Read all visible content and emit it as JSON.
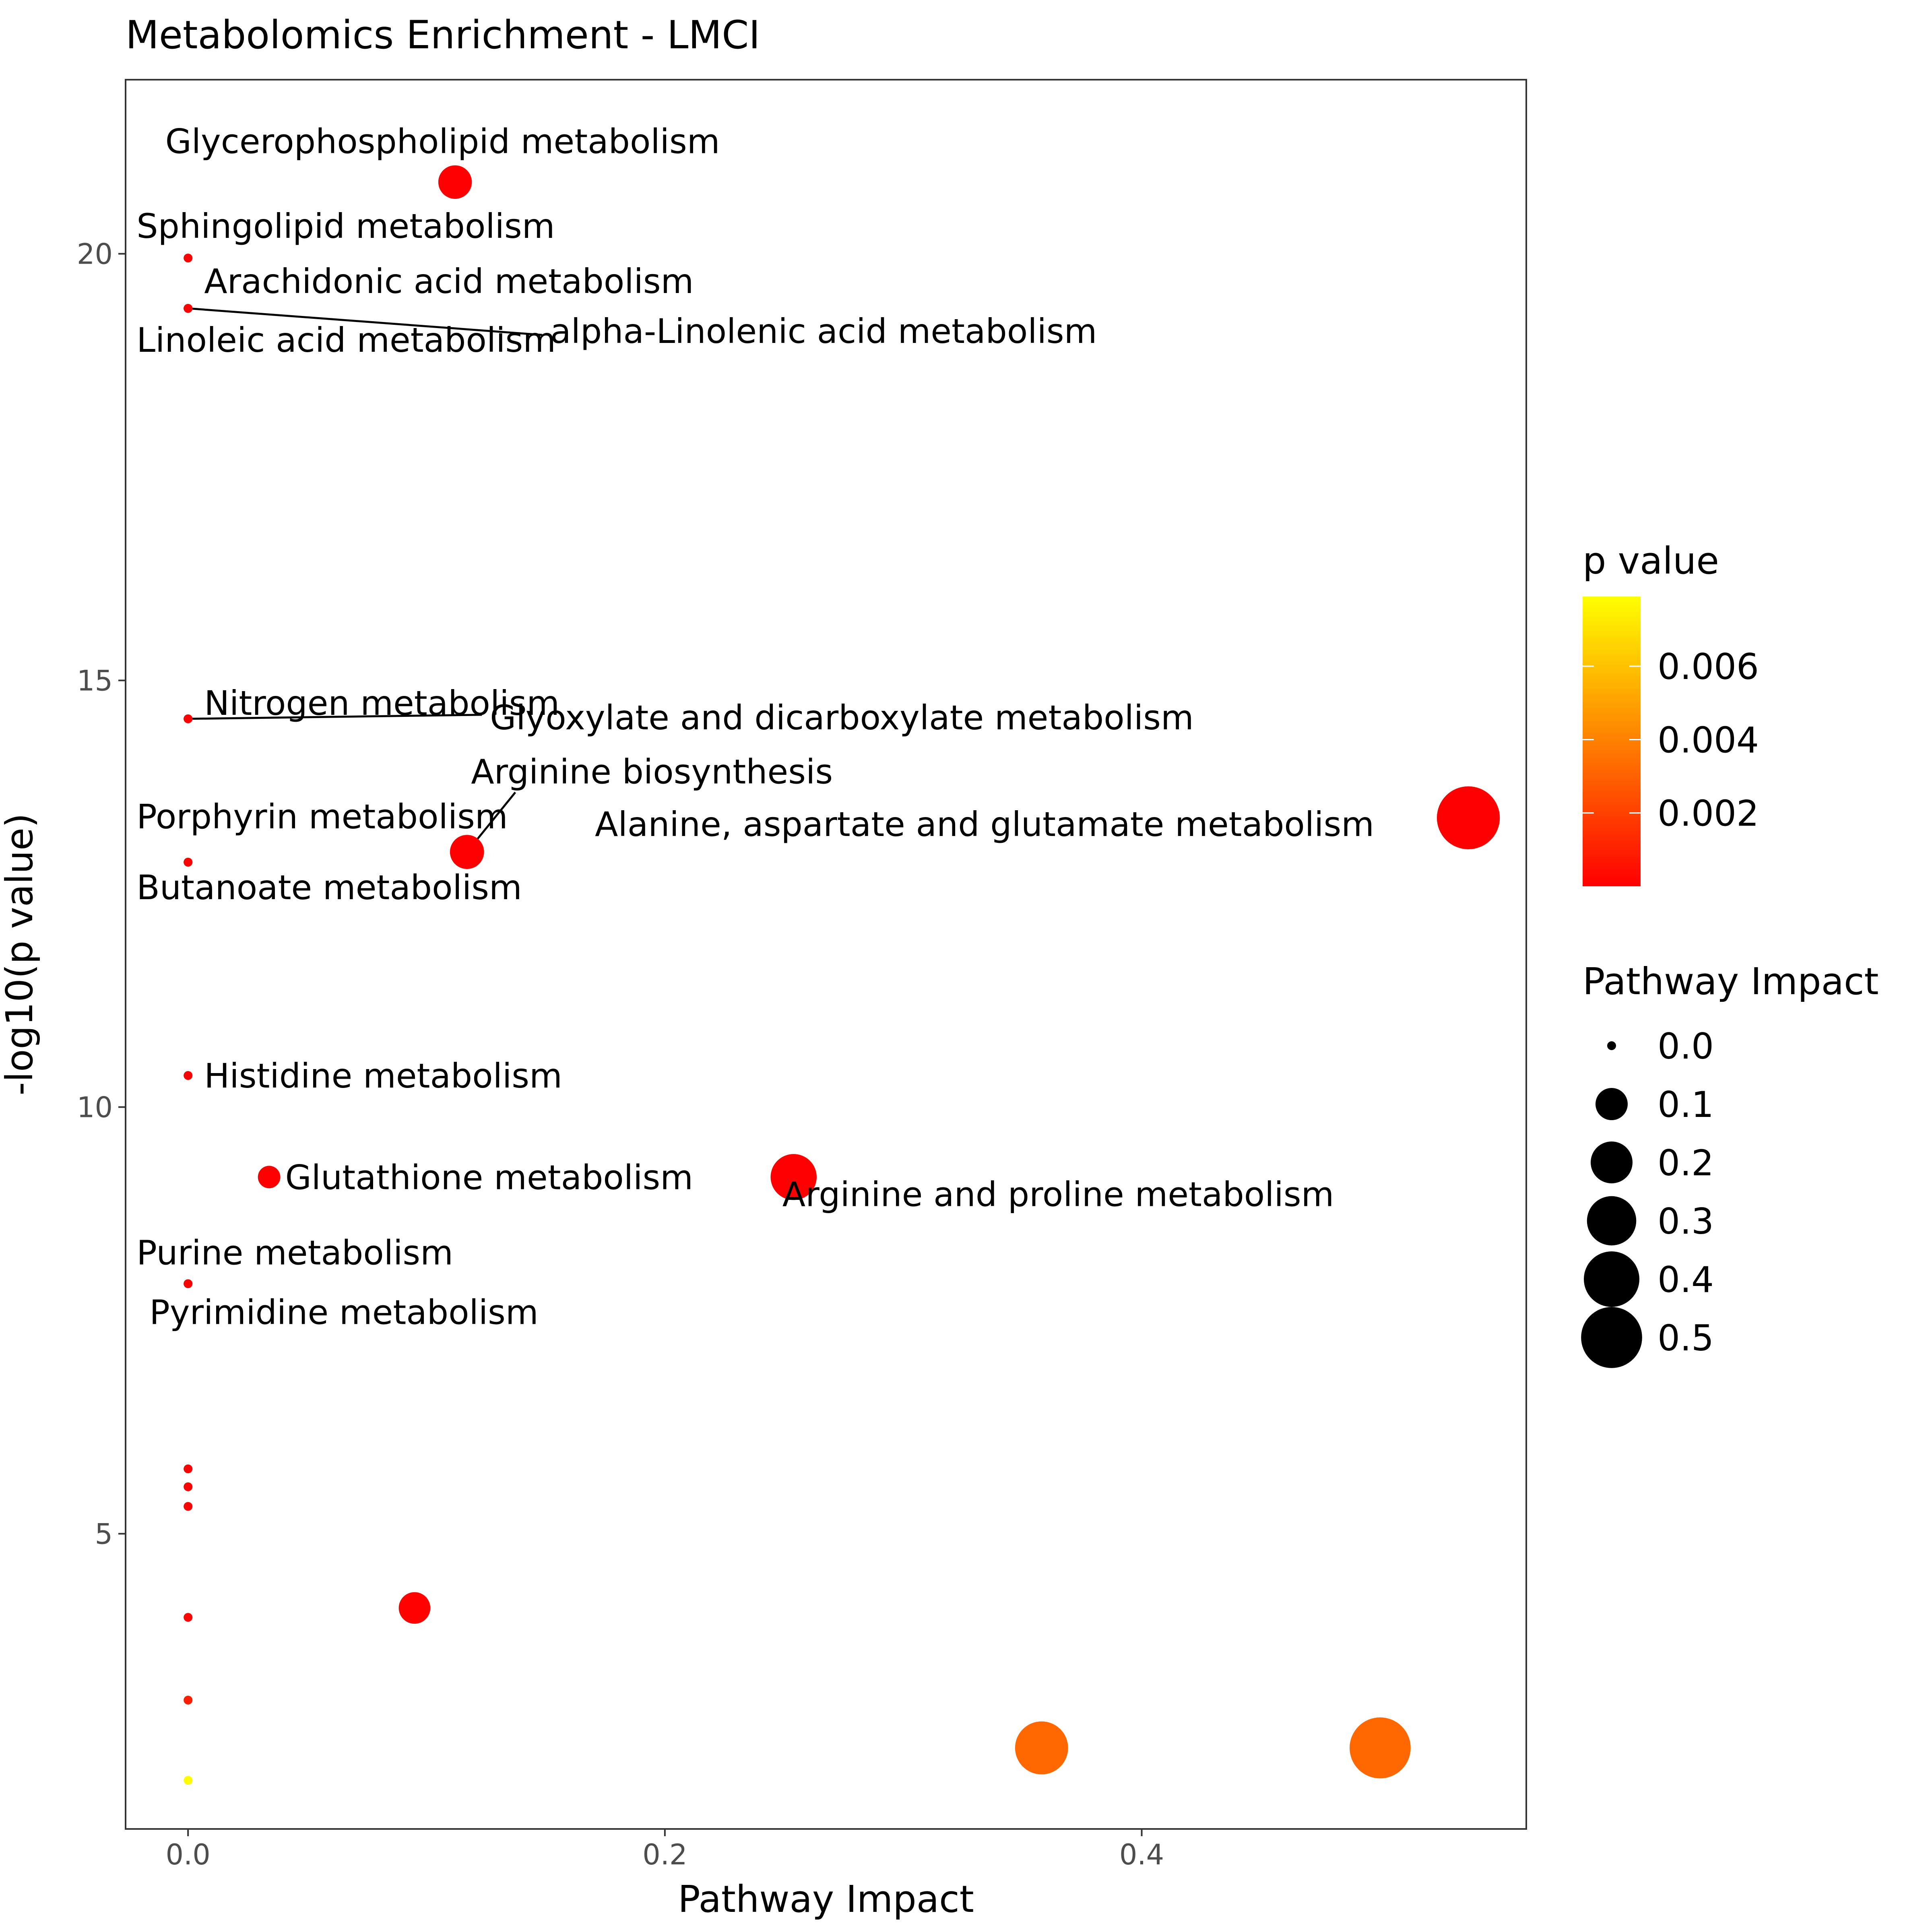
{
  "chart_data": {
    "type": "scatter",
    "title": "Metabolomics Enrichment - LMCI",
    "xlabel": "Pathway Impact",
    "ylabel": "-log10(p value)",
    "xlim": [
      -0.0262,
      0.5613
    ],
    "ylim": [
      1.54,
      22.04
    ],
    "xticks": [
      0.0,
      0.2,
      0.4
    ],
    "xtick_labels": [
      "0.0",
      "0.2",
      "0.4"
    ],
    "yticks": [
      5,
      10,
      15,
      20
    ],
    "ytick_labels": [
      "5",
      "10",
      "15",
      "20"
    ],
    "grid": false,
    "points": [
      {
        "x": 0.112,
        "y": 20.84,
        "p": 1.4e-21,
        "label": "Glycerophospholipid metabolism"
      },
      {
        "x": 0.0,
        "y": 19.95,
        "p": 1.1e-20,
        "label": "Sphingolipid metabolism"
      },
      {
        "x": 0.0,
        "y": 19.36,
        "p": 4.4e-20,
        "label": "Arachidonic acid metabolism"
      },
      {
        "x": 0.0,
        "y": 19.36,
        "p": 4.4e-20,
        "label": "Linoleic acid metabolism"
      },
      {
        "x": 0.0,
        "y": 19.36,
        "p": 4.4e-20,
        "label": "alpha-Linolenic acid metabolism"
      },
      {
        "x": 0.0,
        "y": 14.55,
        "p": 2.8e-15,
        "label": "Nitrogen metabolism"
      },
      {
        "x": 0.0,
        "y": 14.55,
        "p": 2.8e-15,
        "label": "Glyoxylate and dicarboxylate metabolism"
      },
      {
        "x": 0.117,
        "y": 12.99,
        "p": 1e-13,
        "label": "Arginine biosynthesis"
      },
      {
        "x": 0.537,
        "y": 13.39,
        "p": 4.1e-14,
        "label": "Alanine, aspartate and glutamate metabolism"
      },
      {
        "x": 0.0,
        "y": 12.87,
        "p": 1.3e-13,
        "label": "Porphyrin metabolism"
      },
      {
        "x": 0.0,
        "y": 12.87,
        "p": 1.3e-13,
        "label": "Butanoate metabolism"
      },
      {
        "x": 0.0,
        "y": 10.37,
        "p": 4.3e-11,
        "label": "Histidine metabolism"
      },
      {
        "x": 0.034,
        "y": 9.18,
        "p": 6.6e-10,
        "label": "Glutathione metabolism"
      },
      {
        "x": 0.254,
        "y": 9.18,
        "p": 6.6e-10,
        "label": "Arginine and proline metabolism"
      },
      {
        "x": 0.0,
        "y": 7.93,
        "p": 1.2e-08,
        "label": "Purine metabolism"
      },
      {
        "x": 0.0,
        "y": 7.93,
        "p": 1.2e-08,
        "label": "Pyrimidine metabolism"
      },
      {
        "x": 0.0,
        "y": 5.76,
        "p": 1.7e-06,
        "label": ""
      },
      {
        "x": 0.0,
        "y": 5.55,
        "p": 2.8e-06,
        "label": ""
      },
      {
        "x": 0.0,
        "y": 5.32,
        "p": 4.8e-06,
        "label": ""
      },
      {
        "x": 0.0,
        "y": 4.02,
        "p": 9.5e-05,
        "label": ""
      },
      {
        "x": 0.095,
        "y": 4.13,
        "p": 7.4e-05,
        "label": ""
      },
      {
        "x": 0.0,
        "y": 3.05,
        "p": 0.00089,
        "label": ""
      },
      {
        "x": 0.358,
        "y": 2.49,
        "p": 0.0032,
        "label": ""
      },
      {
        "x": 0.5,
        "y": 2.49,
        "p": 0.0032,
        "label": ""
      },
      {
        "x": 0.0,
        "y": 2.11,
        "p": 0.0078,
        "label": ""
      }
    ],
    "legend": {
      "color_title": "p value",
      "color_breaks": [
        0.002,
        0.004,
        0.006
      ],
      "color_break_labels": [
        "0.002",
        "0.004",
        "0.006"
      ],
      "color_range": [
        0.0,
        0.0079
      ],
      "color_low": "#ff0000",
      "color_high": "#ffff00",
      "size_title": "Pathway Impact",
      "size_breaks": [
        0.0,
        0.1,
        0.2,
        0.3,
        0.4,
        0.5
      ],
      "size_break_labels": [
        "0.0",
        "0.1",
        "0.2",
        "0.3",
        "0.4",
        "0.5"
      ],
      "placement": "right"
    }
  }
}
